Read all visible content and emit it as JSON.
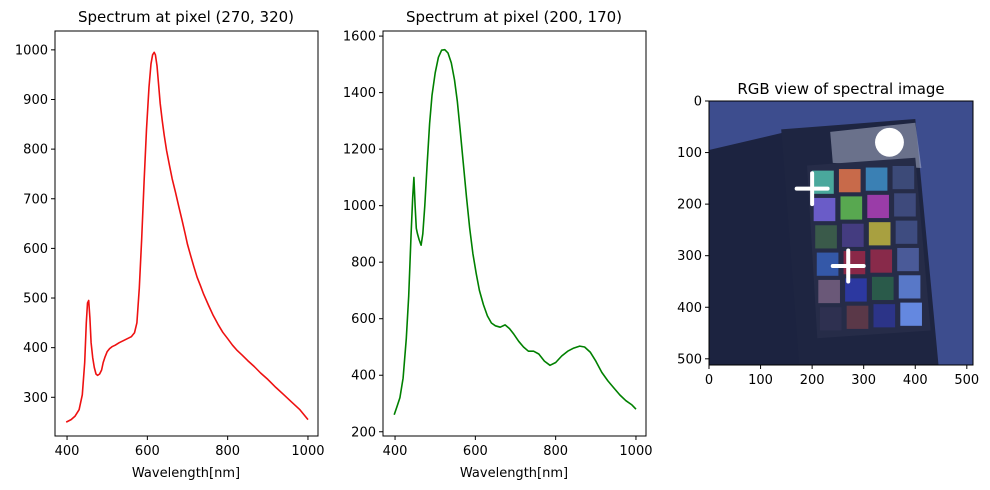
{
  "chart_data": [
    {
      "type": "line",
      "title": "Spectrum at pixel (270, 320)",
      "xlabel": "Wavelength[nm]",
      "ylabel": "",
      "xlim": [
        370,
        1025
      ],
      "ylim": [
        222,
        1038
      ],
      "xticks": [
        400,
        600,
        800,
        1000
      ],
      "yticks": [
        300,
        400,
        500,
        600,
        700,
        800,
        900,
        1000
      ],
      "grid": false,
      "color": "#ee1111",
      "x": [
        398,
        410,
        420,
        430,
        438,
        444,
        448,
        451,
        454,
        457,
        460,
        464,
        468,
        472,
        476,
        481,
        486,
        490,
        494,
        500,
        506,
        512,
        520,
        530,
        540,
        550,
        560,
        568,
        574,
        580,
        586,
        592,
        598,
        604,
        609,
        613,
        617,
        620,
        624,
        628,
        632,
        637,
        642,
        648,
        655,
        662,
        670,
        678,
        686,
        694,
        700,
        708,
        716,
        724,
        732,
        740,
        752,
        764,
        776,
        788,
        800,
        812,
        824,
        836,
        850,
        866,
        882,
        900,
        920,
        940,
        960,
        980,
        1000
      ],
      "y": [
        250,
        255,
        262,
        275,
        305,
        370,
        450,
        490,
        495,
        460,
        410,
        380,
        360,
        347,
        344,
        347,
        355,
        370,
        380,
        392,
        398,
        402,
        405,
        410,
        414,
        418,
        422,
        430,
        450,
        520,
        620,
        735,
        840,
        925,
        972,
        990,
        995,
        990,
        968,
        930,
        892,
        858,
        828,
        797,
        768,
        740,
        713,
        685,
        658,
        630,
        608,
        585,
        563,
        542,
        525,
        508,
        486,
        465,
        447,
        431,
        418,
        405,
        394,
        385,
        374,
        362,
        349,
        336,
        320,
        305,
        290,
        275,
        255
      ]
    },
    {
      "type": "line",
      "title": "Spectrum at pixel (200, 170)",
      "xlabel": "Wavelength[nm]",
      "ylabel": "",
      "xlim": [
        370,
        1025
      ],
      "ylim": [
        185,
        1618
      ],
      "xticks": [
        400,
        600,
        800,
        1000
      ],
      "yticks": [
        200,
        400,
        600,
        800,
        1000,
        1200,
        1400,
        1600
      ],
      "grid": false,
      "color": "#008000",
      "x": [
        398,
        405,
        412,
        420,
        428,
        434,
        440,
        444,
        447,
        450,
        453,
        456,
        460,
        465,
        469,
        474,
        480,
        486,
        492,
        500,
        508,
        516,
        524,
        532,
        540,
        548,
        555,
        562,
        570,
        578,
        586,
        594,
        602,
        610,
        620,
        630,
        640,
        650,
        662,
        674,
        685,
        696,
        708,
        720,
        732,
        745,
        758,
        772,
        786,
        800,
        815,
        830,
        845,
        860,
        872,
        886,
        900,
        915,
        930,
        945,
        960,
        975,
        990,
        1000
      ],
      "y": [
        260,
        290,
        320,
        390,
        530,
        680,
        900,
        1030,
        1100,
        1000,
        920,
        900,
        880,
        860,
        900,
        1000,
        1150,
        1290,
        1390,
        1470,
        1525,
        1550,
        1552,
        1540,
        1505,
        1445,
        1370,
        1270,
        1150,
        1030,
        920,
        830,
        760,
        700,
        650,
        610,
        585,
        575,
        570,
        578,
        565,
        545,
        520,
        500,
        485,
        485,
        475,
        450,
        435,
        445,
        468,
        485,
        496,
        503,
        500,
        482,
        450,
        410,
        380,
        355,
        330,
        310,
        295,
        280
      ]
    },
    {
      "type": "heatmap",
      "title": "RGB view of spectral image",
      "xlabel": "",
      "ylabel": "",
      "xlim": [
        0,
        512
      ],
      "ylim": [
        512,
        0
      ],
      "xticks": [
        0,
        100,
        200,
        300,
        400,
        500
      ],
      "yticks": [
        0,
        100,
        200,
        300,
        400,
        500
      ],
      "grid": false,
      "markers": [
        {
          "shape": "plus",
          "x": 200,
          "y": 170,
          "color": "#ffffff"
        },
        {
          "shape": "plus",
          "x": 270,
          "y": 320,
          "color": "#ffffff"
        },
        {
          "shape": "circle",
          "x": 350,
          "y": 80,
          "color": "#ffffff"
        }
      ],
      "colors": {
        "background": "#3d4d8e",
        "panel_dark": "#1c2340",
        "board": "#1e2541",
        "chart_frame": "#262c48",
        "top_fabric": "#aab1c8"
      },
      "patch_rows": [
        [
          "#4aa89c",
          "#c86a4a",
          "#3a80b4"
        ],
        [
          "#6a5cc8",
          "#58a850",
          "#9a3ca8"
        ],
        [
          "#3a5a4a",
          "#443c80",
          "#a8a040"
        ],
        [
          "#3458a8",
          "#8a2848",
          "#882a4a"
        ],
        [
          "#6a5878",
          "#2c38a0",
          "#2a5a4a"
        ],
        [
          "#2e3050",
          "#5a3848",
          "#2c3488"
        ]
      ],
      "patch_right_col": [
        "#3c4a78",
        "#3e4a7c",
        "#3e4c80",
        "#4a5a98",
        "#5878c8",
        "#6488e0"
      ]
    }
  ]
}
